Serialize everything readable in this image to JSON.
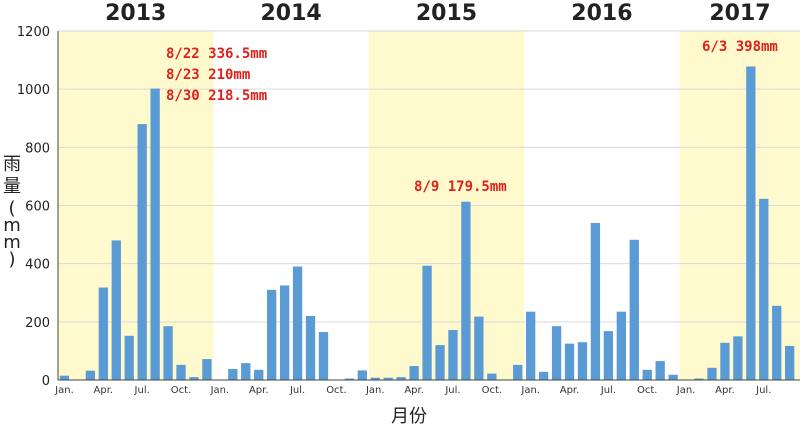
{
  "chart_data": {
    "type": "bar",
    "xlabel": "月份",
    "ylabel": "雨量(mm)",
    "ylim": [
      0,
      1200
    ],
    "yticks": [
      0,
      200,
      400,
      600,
      800,
      1000,
      1200
    ],
    "grid": true,
    "colors": {
      "bar": "#5b9bd5",
      "band": "#fffacd",
      "annotation": "#e0201a",
      "grid": "#d9d9d9"
    },
    "years": [
      {
        "label": "2013",
        "highlight": true,
        "months": [
          "Jan.",
          "Apr.",
          "Jul.",
          "Oct."
        ],
        "values": [
          15,
          0,
          32,
          318,
          480,
          152,
          880,
          1002,
          185,
          52,
          10,
          72
        ]
      },
      {
        "label": "2014",
        "highlight": false,
        "months": [
          "Jan.",
          "Apr.",
          "Jul.",
          "Oct."
        ],
        "values": [
          0,
          38,
          58,
          35,
          310,
          325,
          390,
          220,
          165,
          0,
          5,
          33
        ]
      },
      {
        "label": "2015",
        "highlight": true,
        "months": [
          "Jan.",
          "Apr.",
          "Jul.",
          "Oct."
        ],
        "values": [
          8,
          8,
          10,
          48,
          393,
          120,
          172,
          613,
          218,
          22,
          0,
          52
        ]
      },
      {
        "label": "2016",
        "highlight": false,
        "months": [
          "Jan.",
          "Apr.",
          "Jul.",
          "Oct."
        ],
        "values": [
          235,
          28,
          185,
          125,
          130,
          540,
          168,
          235,
          482,
          35,
          65,
          18
        ]
      },
      {
        "label": "2017",
        "highlight": true,
        "months": [
          "Jan.",
          "Apr.",
          "Jul."
        ],
        "values": [
          0,
          5,
          42,
          128,
          150,
          1078,
          623,
          255,
          117
        ]
      }
    ],
    "annotations": [
      {
        "year": "2013",
        "lines": [
          "8/22 336.5mm",
          "8/23 210mm",
          "8/30 218.5mm"
        ]
      },
      {
        "year": "2015",
        "lines": [
          "8/9 179.5mm"
        ]
      },
      {
        "year": "2017",
        "lines": [
          "6/3 398mm"
        ]
      }
    ]
  }
}
